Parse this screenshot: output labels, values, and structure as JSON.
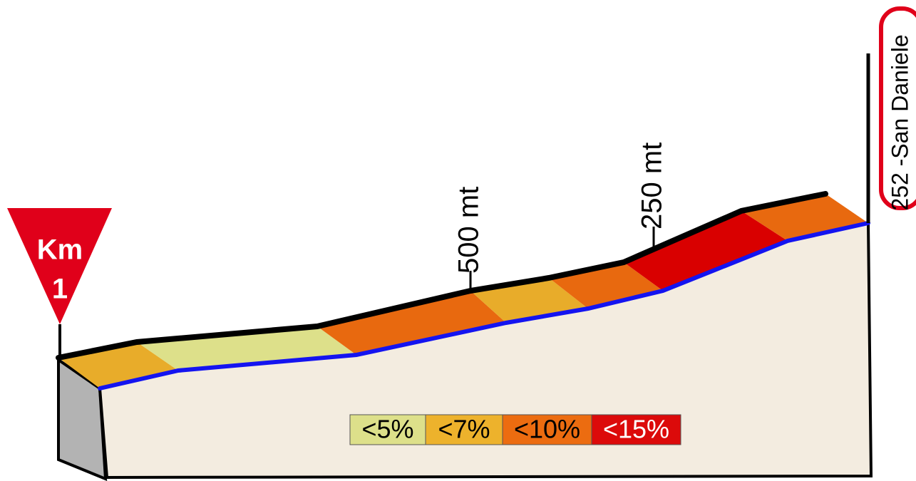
{
  "marker": {
    "top": "Km",
    "bottom": "1"
  },
  "distance_labels": [
    "500 mt",
    "250 mt"
  ],
  "finish": {
    "label": "252 -San Daniele"
  },
  "legend": [
    {
      "label": "<5%",
      "color": "#dde08a"
    },
    {
      "label": "<7%",
      "color": "#edb22c"
    },
    {
      "label": "<10%",
      "color": "#ec6c10"
    },
    {
      "label": "<15%",
      "color": "#dc0a0a"
    }
  ]
}
